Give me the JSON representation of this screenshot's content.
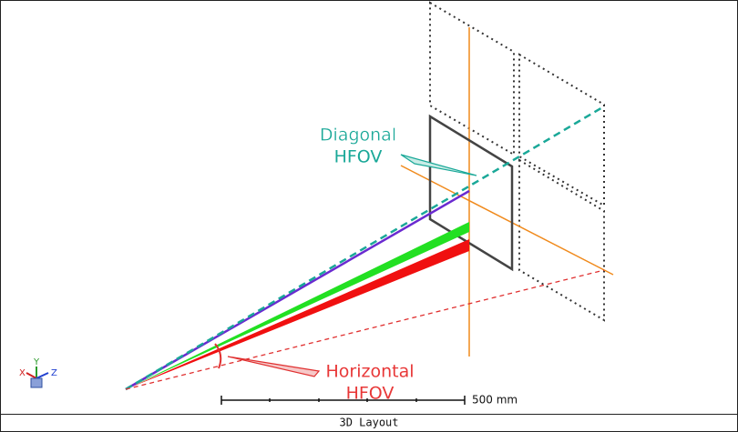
{
  "annotations": {
    "diagonal": [
      "Diagonal",
      "HFOV"
    ],
    "horizontal": [
      "Horizontal",
      "HFOV"
    ]
  },
  "scale_bar": "500 mm",
  "axes": [
    "X",
    "Y",
    "Z"
  ],
  "footer": "3D Layout"
}
